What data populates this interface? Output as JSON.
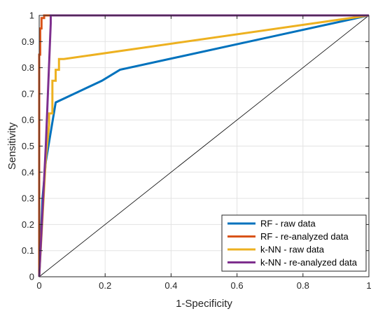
{
  "chart_data": {
    "type": "line",
    "title": "",
    "xlabel": "1-Specificity",
    "ylabel": "Sensitivity",
    "xlim": [
      0,
      1
    ],
    "ylim": [
      0,
      1
    ],
    "xticks": [
      0,
      0.2,
      0.4,
      0.6,
      0.8,
      1
    ],
    "xtick_labels": [
      "0",
      "0.2",
      "0.4",
      "0.6",
      "0.8",
      "1"
    ],
    "yticks": [
      0,
      0.1,
      0.2,
      0.3,
      0.4,
      0.5,
      0.6,
      0.7,
      0.8,
      0.9,
      1
    ],
    "ytick_labels": [
      "0",
      "0.1",
      "0.2",
      "0.3",
      "0.4",
      "0.5",
      "0.6",
      "0.7",
      "0.8",
      "0.9",
      "1"
    ],
    "grid": true,
    "legend_position": "bottom-right",
    "series": [
      {
        "name": "RF - raw data",
        "color": "#0072BD",
        "x": [
          0,
          0.01,
          0.02,
          0.05,
          0.19,
          0.245,
          1
        ],
        "y": [
          0,
          0.3,
          0.44,
          0.667,
          0.75,
          0.792,
          1
        ]
      },
      {
        "name": "RF - re-analyzed data",
        "color": "#D95319",
        "x": [
          0,
          0,
          0.003,
          0.003,
          0.007,
          0.007,
          0.015,
          0.015,
          1
        ],
        "y": [
          0,
          0.85,
          0.85,
          0.95,
          0.95,
          0.99,
          0.99,
          1,
          1
        ]
      },
      {
        "name": "k-NN - raw data",
        "color": "#EDB120",
        "x": [
          0,
          0.02,
          0.03,
          0.03,
          0.04,
          0.04,
          0.05,
          0.05,
          0.06,
          0.06,
          0.075,
          1
        ],
        "y": [
          0,
          0.45,
          0.583,
          0.625,
          0.625,
          0.75,
          0.75,
          0.792,
          0.792,
          0.833,
          0.833,
          1
        ]
      },
      {
        "name": "k-NN - re-analyzed data",
        "color": "#7E2F8E",
        "x": [
          0,
          0.02,
          0.035,
          0.035,
          1
        ],
        "y": [
          0,
          0.5,
          0.97,
          1,
          1
        ]
      }
    ],
    "reference_line": {
      "x": [
        0,
        1
      ],
      "y": [
        0,
        1
      ],
      "color": "#000000"
    }
  }
}
